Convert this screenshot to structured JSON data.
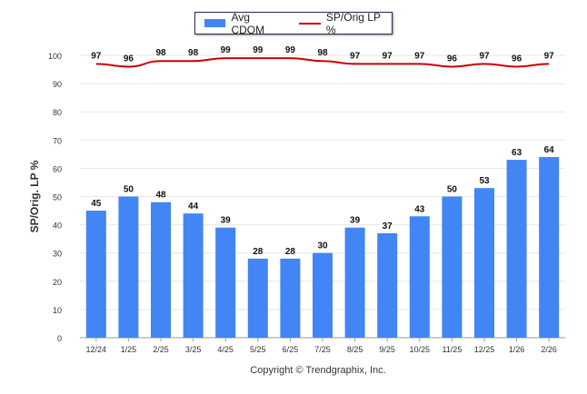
{
  "chart_data": {
    "type": "bar",
    "categories": [
      "12/24",
      "1/25",
      "2/25",
      "3/25",
      "4/25",
      "5/25",
      "6/25",
      "7/25",
      "8/25",
      "9/25",
      "10/25",
      "11/25",
      "12/25",
      "1/26",
      "2/26"
    ],
    "series": [
      {
        "name": "Avg CDOM",
        "type": "bar",
        "color": "#4285f4",
        "values": [
          45,
          50,
          48,
          44,
          39,
          28,
          28,
          30,
          39,
          37,
          43,
          50,
          53,
          63,
          64
        ]
      },
      {
        "name": "SP/Orig LP %",
        "type": "line",
        "color": "#cc0000",
        "values": [
          97,
          96,
          98,
          98,
          99,
          99,
          99,
          98,
          97,
          97,
          97,
          96,
          97,
          96,
          97
        ]
      }
    ],
    "ylabel": "SP/Orig. LP %",
    "xlabel": "",
    "ylim": [
      0,
      100
    ],
    "yticks": [
      0,
      10,
      20,
      30,
      40,
      50,
      60,
      70,
      80,
      90,
      100
    ],
    "grid": true,
    "legend": "top-center"
  },
  "footer": {
    "copyright": "Copyright © Trendgraphix, Inc."
  }
}
